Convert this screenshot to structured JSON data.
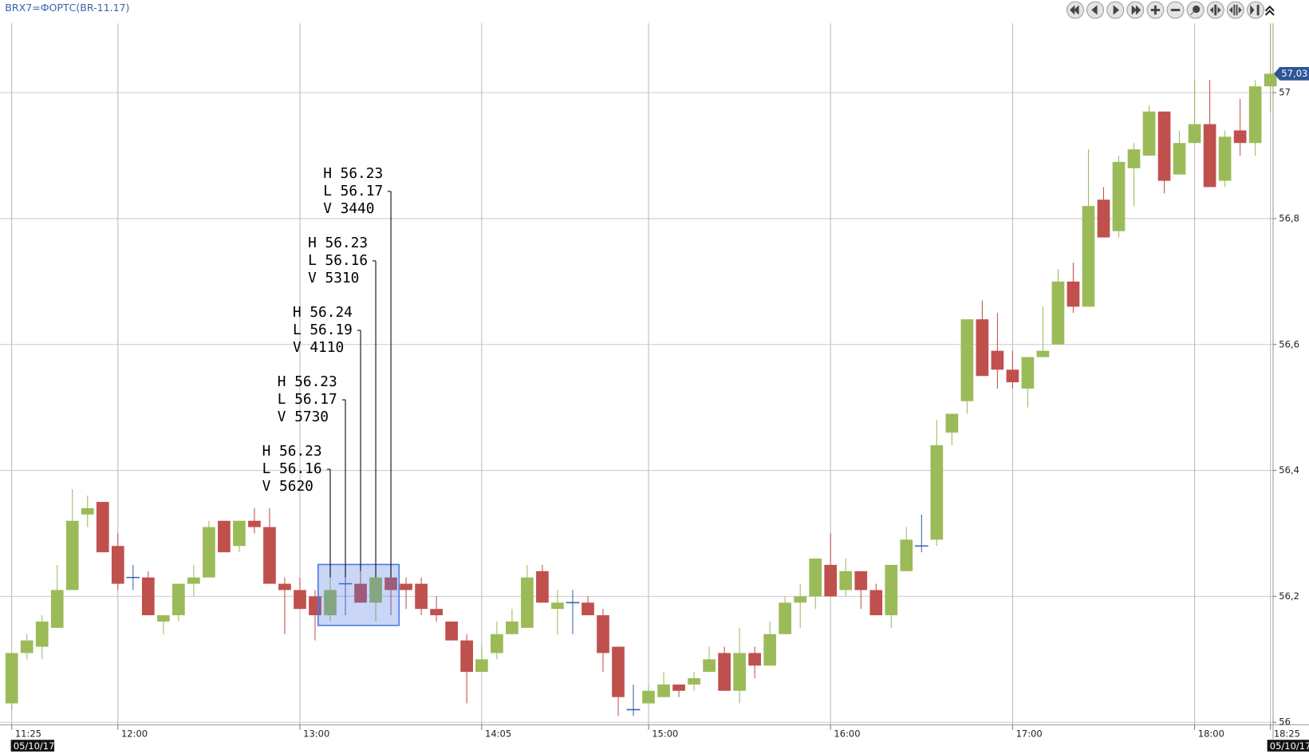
{
  "chart_data": {
    "type": "candlestick",
    "title": "BRX7=ФОРТС(BR-11.17)",
    "categories": [
      "11:25",
      null,
      null,
      null,
      null,
      null,
      null,
      "12:00",
      null,
      null,
      null,
      null,
      null,
      null,
      null,
      null,
      null,
      null,
      null,
      "13:00",
      null,
      null,
      null,
      null,
      null,
      null,
      null,
      null,
      null,
      null,
      null,
      "14:05",
      null,
      null,
      null,
      null,
      null,
      null,
      null,
      null,
      null,
      null,
      "15:00",
      null,
      null,
      null,
      null,
      null,
      null,
      null,
      null,
      null,
      null,
      null,
      "16:00",
      null,
      null,
      null,
      null,
      null,
      null,
      null,
      null,
      null,
      null,
      null,
      "17:00",
      null,
      null,
      null,
      null,
      null,
      null,
      null,
      null,
      null,
      null,
      null,
      "18:00",
      null,
      null,
      null,
      null,
      "18:25"
    ],
    "open": [
      56.03,
      56.11,
      56.12,
      56.15,
      56.21,
      56.33,
      56.35,
      56.28,
      56.23,
      56.23,
      56.16,
      56.17,
      56.22,
      56.23,
      56.32,
      56.28,
      56.32,
      56.31,
      56.22,
      56.21,
      56.2,
      56.17,
      56.22,
      56.22,
      56.19,
      56.23,
      56.22,
      56.22,
      56.18,
      56.16,
      56.13,
      56.08,
      56.11,
      56.14,
      56.15,
      56.24,
      56.18,
      56.19,
      56.19,
      56.17,
      56.12,
      56.02,
      56.03,
      56.04,
      56.06,
      56.06,
      56.08,
      56.11,
      56.05,
      56.11,
      56.09,
      56.14,
      56.19,
      56.2,
      56.25,
      56.21,
      56.24,
      56.21,
      56.17,
      56.24,
      56.28,
      56.29,
      56.46,
      56.51,
      56.64,
      56.59,
      56.56,
      56.53,
      56.58,
      56.6,
      56.7,
      56.66,
      56.83,
      56.78,
      56.88,
      56.9,
      56.97,
      56.87,
      56.92,
      56.95,
      56.86,
      56.94,
      56.92,
      57.01
    ],
    "high": [
      56.11,
      56.14,
      56.17,
      56.25,
      56.37,
      56.36,
      56.35,
      56.3,
      56.25,
      56.24,
      56.17,
      56.22,
      56.25,
      56.32,
      56.32,
      56.32,
      56.34,
      56.34,
      56.23,
      56.23,
      56.21,
      56.23,
      56.23,
      56.24,
      56.23,
      56.23,
      56.23,
      56.23,
      56.2,
      56.16,
      56.14,
      56.12,
      56.16,
      56.18,
      56.25,
      56.25,
      56.21,
      56.21,
      56.2,
      56.18,
      56.12,
      56.06,
      56.06,
      56.08,
      56.06,
      56.08,
      56.12,
      56.12,
      56.15,
      56.12,
      56.16,
      56.2,
      56.22,
      56.26,
      56.3,
      56.26,
      56.24,
      56.22,
      56.25,
      56.31,
      56.33,
      56.48,
      56.49,
      56.64,
      56.67,
      56.65,
      56.59,
      56.58,
      56.66,
      56.72,
      56.73,
      56.91,
      56.85,
      56.9,
      56.92,
      56.98,
      56.97,
      56.94,
      57.02,
      57.02,
      56.94,
      56.99,
      57.02,
      57.11
    ],
    "low": [
      56.02,
      56.1,
      56.1,
      56.15,
      56.21,
      56.31,
      56.27,
      56.21,
      56.21,
      56.17,
      56.14,
      56.16,
      56.2,
      56.23,
      56.27,
      56.27,
      56.3,
      56.22,
      56.14,
      56.18,
      56.13,
      56.16,
      56.17,
      56.19,
      56.16,
      56.17,
      56.18,
      56.17,
      56.16,
      56.13,
      56.03,
      56.08,
      56.1,
      56.14,
      56.15,
      56.19,
      56.14,
      56.14,
      56.17,
      56.08,
      56.01,
      56.01,
      56.03,
      56.04,
      56.04,
      56.05,
      56.08,
      56.05,
      56.03,
      56.07,
      56.09,
      56.14,
      56.15,
      56.18,
      56.2,
      56.2,
      56.18,
      56.17,
      56.15,
      56.24,
      56.27,
      56.28,
      56.44,
      56.49,
      56.55,
      56.53,
      56.53,
      56.5,
      56.58,
      56.6,
      56.65,
      56.66,
      56.77,
      56.77,
      56.82,
      56.9,
      56.84,
      56.87,
      56.92,
      56.85,
      56.85,
      56.9,
      56.9,
      56.97
    ],
    "close": [
      56.11,
      56.13,
      56.16,
      56.21,
      56.32,
      56.34,
      56.27,
      56.22,
      56.23,
      56.17,
      56.17,
      56.22,
      56.23,
      56.31,
      56.27,
      56.32,
      56.31,
      56.22,
      56.21,
      56.18,
      56.17,
      56.21,
      56.22,
      56.19,
      56.23,
      56.21,
      56.21,
      56.18,
      56.17,
      56.13,
      56.08,
      56.1,
      56.14,
      56.16,
      56.23,
      56.19,
      56.19,
      56.19,
      56.17,
      56.11,
      56.04,
      56.02,
      56.05,
      56.06,
      56.05,
      56.07,
      56.1,
      56.05,
      56.11,
      56.09,
      56.14,
      56.19,
      56.2,
      56.26,
      56.2,
      56.24,
      56.21,
      56.17,
      56.25,
      56.29,
      56.28,
      56.44,
      56.49,
      56.64,
      56.55,
      56.56,
      56.54,
      56.58,
      56.59,
      56.7,
      56.66,
      56.82,
      56.77,
      56.89,
      56.91,
      56.97,
      56.86,
      56.92,
      56.95,
      56.85,
      56.93,
      56.92,
      57.01,
      57.03
    ],
    "up_color": "#9bbb59",
    "down_color": "#c0504d",
    "doji_color": "#3a64a8",
    "ylim": [
      56,
      57.11
    ],
    "yticks": [
      56,
      {
        "value": 56.2,
        "label": "56,2"
      },
      {
        "value": 56.4,
        "label": "56,4"
      },
      {
        "value": 56.6,
        "label": "56,6"
      },
      {
        "value": 56.8,
        "label": "56,8"
      },
      57
    ],
    "grid": true,
    "last_price_label": "57,03",
    "start_date": "05/10/17",
    "end_date": "05/10/17",
    "annotations": [
      [
        "H 56.23",
        "L 56.16",
        "V 5620"
      ],
      [
        "H 56.23",
        "L 56.17",
        "V 5730"
      ],
      [
        "H 56.24",
        "L 56.19",
        "V 4110"
      ],
      [
        "H 56.23",
        "L 56.16",
        "V 5310"
      ],
      [
        "H 56.23",
        "L 56.17",
        "V 3440"
      ]
    ]
  }
}
